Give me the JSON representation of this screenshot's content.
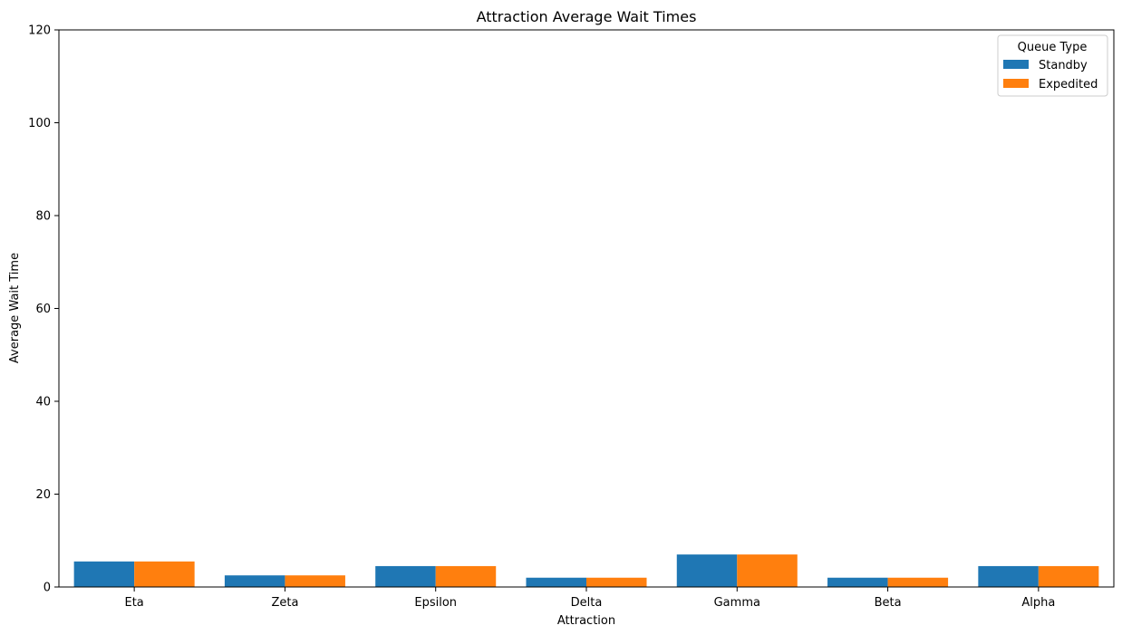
{
  "chart_data": {
    "type": "bar",
    "title": "Attraction Average Wait Times",
    "xlabel": "Attraction",
    "ylabel": "Average Wait Time",
    "ylim": [
      0,
      120
    ],
    "yticks": [
      0,
      20,
      40,
      60,
      80,
      100,
      120
    ],
    "categories": [
      "Eta",
      "Zeta",
      "Epsilon",
      "Delta",
      "Gamma",
      "Beta",
      "Alpha"
    ],
    "legend": {
      "title": "Queue Type",
      "placement": "top-right"
    },
    "grid": false,
    "series": [
      {
        "name": "Standby",
        "color": "#1f77b4",
        "values": [
          5.5,
          2.5,
          4.5,
          2.0,
          7.0,
          2.0,
          4.5
        ]
      },
      {
        "name": "Expedited",
        "color": "#ff7f0e",
        "values": [
          5.5,
          2.5,
          4.5,
          2.0,
          7.0,
          2.0,
          4.5
        ]
      }
    ]
  }
}
